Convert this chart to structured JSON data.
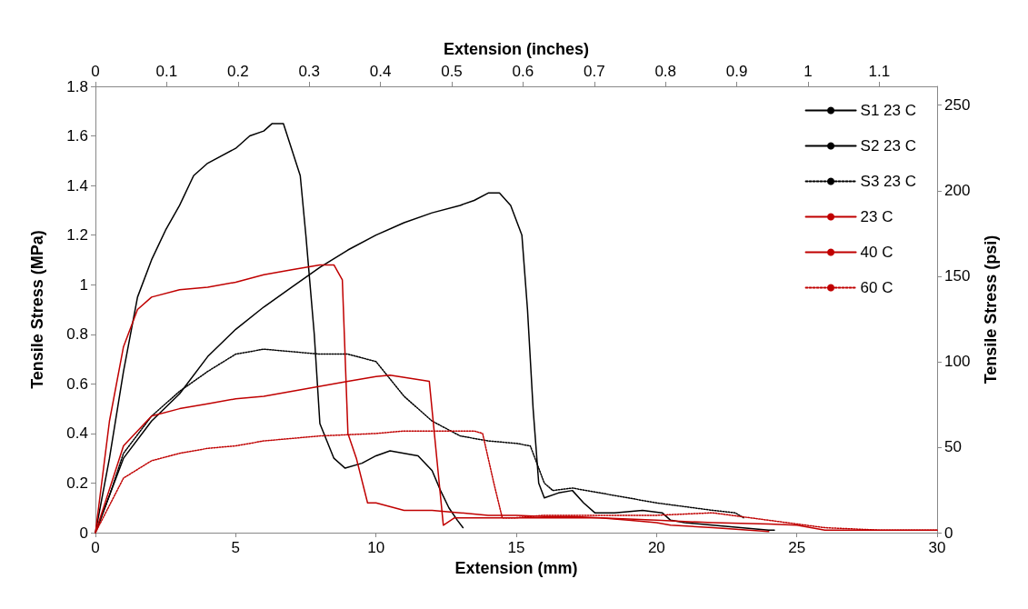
{
  "chart_data": {
    "type": "line",
    "xlabel": "Extension (mm)",
    "ylabel": "Tensile Stress (MPa)",
    "y2label": "Tensile Stress (psi)",
    "x2label": "Extension (inches)",
    "xlim": [
      0,
      30
    ],
    "xticks": [
      0,
      5,
      10,
      15,
      20,
      25,
      30
    ],
    "ylim": [
      0,
      1.8
    ],
    "yticks": [
      0,
      0.2,
      0.4,
      0.6,
      0.8,
      1,
      1.2,
      1.4,
      1.6,
      1.8
    ],
    "y2lim": [
      0,
      261
    ],
    "y2ticks": [
      0,
      50,
      100,
      150,
      200,
      250
    ],
    "x2lim": [
      0,
      1.1811
    ],
    "x2ticks": [
      0,
      0.1,
      0.2,
      0.3,
      0.4,
      0.5,
      0.6,
      0.7,
      0.8,
      0.9,
      1,
      1.1
    ],
    "legend": "top right",
    "marker": "none",
    "series": [
      {
        "name": "S1 23 C",
        "color": "#000000",
        "line_style": "solid",
        "x": [
          0,
          1,
          2,
          3,
          4,
          5,
          6,
          7,
          8,
          9,
          10,
          11,
          12,
          13,
          13.5,
          14,
          14.4,
          14.8,
          15.2,
          15.4,
          15.6,
          15.8,
          16,
          16.5,
          17,
          17.4,
          17.8,
          18.5,
          19.5,
          20.2,
          20.5,
          21,
          22,
          23,
          24,
          24.2
        ],
        "values": [
          0,
          0.3,
          0.45,
          0.56,
          0.71,
          0.82,
          0.91,
          0.99,
          1.07,
          1.14,
          1.2,
          1.25,
          1.29,
          1.32,
          1.34,
          1.37,
          1.37,
          1.32,
          1.2,
          0.9,
          0.5,
          0.2,
          0.14,
          0.16,
          0.17,
          0.12,
          0.08,
          0.08,
          0.09,
          0.08,
          0.05,
          0.04,
          0.03,
          0.02,
          0.01,
          0.01
        ]
      },
      {
        "name": "S2 23 C",
        "color": "#000000",
        "line_style": "solid",
        "x": [
          0,
          0.5,
          1,
          1.5,
          2,
          2.5,
          3,
          3.5,
          4,
          5,
          5.5,
          6,
          6.3,
          6.7,
          7.3,
          7.5,
          7.8,
          8,
          8.5,
          8.9,
          9.5,
          10,
          10.5,
          11,
          11.5,
          12,
          12.3,
          12.6,
          12.9,
          13.1
        ],
        "values": [
          0,
          0.3,
          0.65,
          0.95,
          1.1,
          1.22,
          1.32,
          1.44,
          1.49,
          1.55,
          1.6,
          1.62,
          1.65,
          1.65,
          1.44,
          1.2,
          0.8,
          0.44,
          0.3,
          0.26,
          0.28,
          0.31,
          0.33,
          0.32,
          0.31,
          0.25,
          0.17,
          0.1,
          0.05,
          0.02
        ]
      },
      {
        "name": "S3 23 C",
        "color": "#000000",
        "line_style": "dotted",
        "x": [
          0,
          0.5,
          1,
          2,
          3,
          4,
          5,
          6,
          7,
          8,
          9,
          10,
          11,
          12,
          13,
          14,
          15,
          15.5,
          16,
          16.3,
          17,
          18,
          20,
          22,
          22.8,
          23.1
        ],
        "values": [
          0,
          0.15,
          0.32,
          0.47,
          0.57,
          0.65,
          0.72,
          0.74,
          0.73,
          0.72,
          0.72,
          0.69,
          0.55,
          0.45,
          0.39,
          0.37,
          0.36,
          0.35,
          0.2,
          0.17,
          0.18,
          0.16,
          0.12,
          0.09,
          0.08,
          0.06
        ]
      },
      {
        "name": "23 C",
        "color": "#c00000",
        "line_style": "solid",
        "x": [
          0,
          0.5,
          1,
          1.5,
          2,
          3,
          4,
          5,
          6,
          7,
          8,
          8.5,
          8.8,
          9,
          9.3,
          9.7,
          10,
          11,
          12,
          13,
          14,
          15,
          16,
          17,
          18,
          19,
          20,
          20.5,
          22,
          24
        ],
        "values": [
          0,
          0.45,
          0.75,
          0.9,
          0.95,
          0.98,
          0.99,
          1.01,
          1.04,
          1.06,
          1.08,
          1.08,
          1.02,
          0.4,
          0.3,
          0.12,
          0.12,
          0.09,
          0.09,
          0.08,
          0.07,
          0.07,
          0.065,
          0.065,
          0.06,
          0.05,
          0.04,
          0.03,
          0.02,
          0.005
        ]
      },
      {
        "name": "40 C",
        "color": "#c00000",
        "line_style": "solid",
        "x": [
          0,
          1,
          2,
          3,
          4,
          5,
          6,
          7,
          8,
          9,
          10,
          10.5,
          11.9,
          12.4,
          12.8,
          14,
          16,
          18,
          20,
          22,
          24,
          25,
          26,
          30
        ],
        "values": [
          0,
          0.35,
          0.47,
          0.5,
          0.52,
          0.54,
          0.55,
          0.57,
          0.59,
          0.61,
          0.63,
          0.635,
          0.61,
          0.03,
          0.06,
          0.06,
          0.06,
          0.06,
          0.05,
          0.04,
          0.035,
          0.03,
          0.01,
          0.01
        ]
      },
      {
        "name": "60 C",
        "color": "#c00000",
        "line_style": "dotted",
        "x": [
          0,
          1,
          2,
          3,
          4,
          5,
          6,
          7,
          8,
          9,
          10,
          11,
          12,
          13,
          13.5,
          13.8,
          14.2,
          14.5,
          15,
          16,
          18,
          20,
          22,
          24,
          26,
          28,
          30
        ],
        "values": [
          0,
          0.22,
          0.29,
          0.32,
          0.34,
          0.35,
          0.37,
          0.38,
          0.39,
          0.395,
          0.4,
          0.41,
          0.41,
          0.41,
          0.41,
          0.4,
          0.2,
          0.06,
          0.06,
          0.07,
          0.07,
          0.07,
          0.08,
          0.05,
          0.02,
          0.01,
          0.01
        ]
      }
    ]
  }
}
